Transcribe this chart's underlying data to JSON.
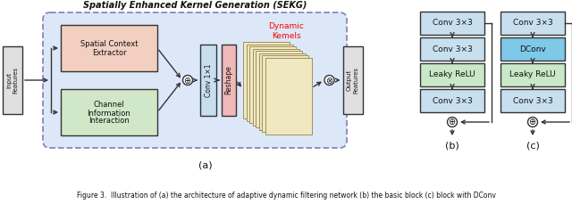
{
  "title": "Spatially Enhanced Kernel Generation (SEKG)",
  "bg_color": "#ffffff",
  "sekg_bg": "#dce8f8",
  "sekg_edge": "#8888bb",
  "spatial_box_color": "#f2cfc0",
  "channel_box_color": "#d0e8c8",
  "conv_box_color": "#c8dff0",
  "reshape_box_color": "#f0b8b8",
  "output_box_color": "#e0e0e0",
  "dconv_box_color": "#7ec8e8",
  "leaky_box_color": "#c8e8c8",
  "plain_box_color": "#c8dff0",
  "kernel_color": "#f0e8c0",
  "kernel_edge": "#a09060",
  "label_a": "(a)",
  "label_b": "(b)",
  "label_c": "(c)",
  "caption": "Figure 3.  Illustration of (a) the architecture of adaptive dynamic filtering network (b) the basic block (c) block with DConv"
}
